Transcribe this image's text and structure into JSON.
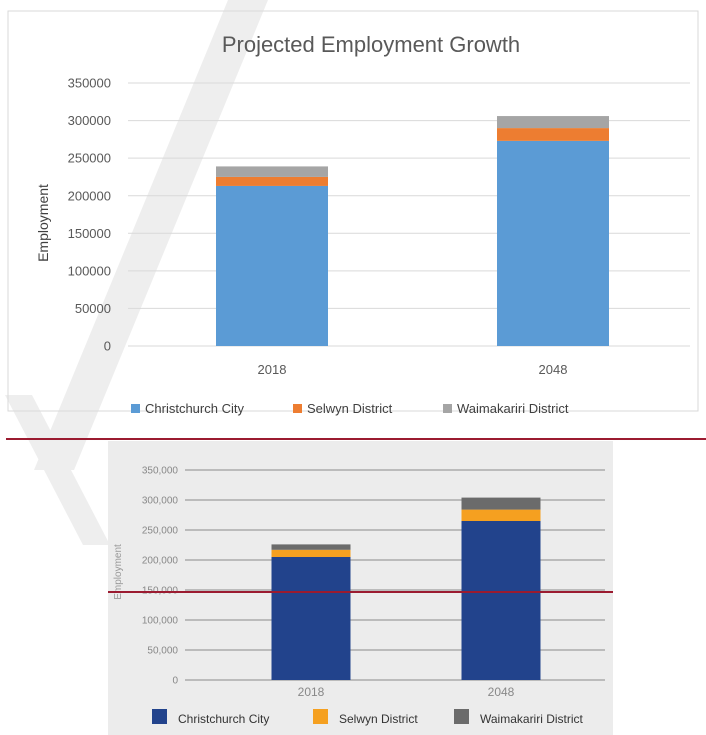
{
  "chart_data": [
    {
      "type": "bar",
      "stacked": true,
      "title": "Projected Employment Growth",
      "xlabel": "",
      "ylabel": "Employment",
      "ylim": [
        0,
        350000
      ],
      "yticks": [
        "0",
        "50000",
        "100000",
        "150000",
        "200000",
        "250000",
        "300000",
        "350000"
      ],
      "categories": [
        "2018",
        "2048"
      ],
      "series": [
        {
          "name": "Christchurch City",
          "color": "#5b9bd5",
          "values": [
            213000,
            273000
          ]
        },
        {
          "name": "Selwyn District",
          "color": "#ed7d31",
          "values": [
            12000,
            17000
          ]
        },
        {
          "name": "Waimakariri District",
          "color": "#a5a5a5",
          "values": [
            14000,
            16000
          ]
        }
      ],
      "grid": true,
      "legend": "bottom"
    },
    {
      "type": "bar",
      "stacked": true,
      "title": "",
      "xlabel": "",
      "ylabel": "Employment",
      "ylim": [
        0,
        350000
      ],
      "yticks": [
        "0",
        "50,000",
        "100,000",
        "150,000",
        "200,000",
        "250,000",
        "300,000",
        "350,000"
      ],
      "categories": [
        "2018",
        "2048"
      ],
      "series": [
        {
          "name": "Christchurch City",
          "color": "#22438c",
          "values": [
            205000,
            265000
          ]
        },
        {
          "name": "Selwyn District",
          "color": "#f5a020",
          "values": [
            12000,
            19000
          ]
        },
        {
          "name": "Waimakariri District",
          "color": "#6b6b6b",
          "values": [
            9000,
            20000
          ]
        }
      ],
      "grid": true,
      "legend": "bottom"
    }
  ],
  "colors": {
    "divider_line": "#9b1b30",
    "watermark": "#eeeeee",
    "lower_panel_bg": "#ececec"
  }
}
